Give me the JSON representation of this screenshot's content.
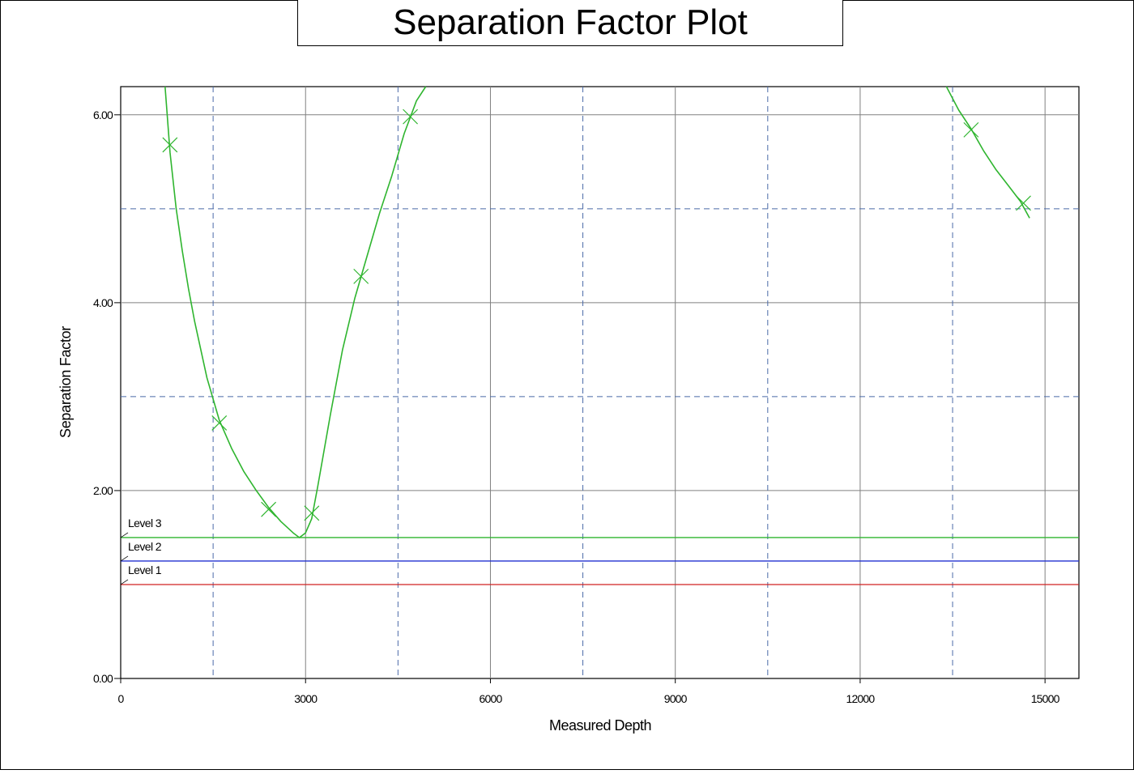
{
  "chart_data": {
    "type": "line",
    "title": "Separation Factor Plot",
    "xlabel": "Measured Depth",
    "ylabel": "Separation Factor",
    "xlim": [
      0,
      15550
    ],
    "ylim": [
      0,
      6.3
    ],
    "x_ticks": [
      0,
      3000,
      6000,
      9000,
      12000,
      15000
    ],
    "x_tick_labels": [
      "0",
      "3000",
      "6000",
      "9000",
      "12000",
      "15000"
    ],
    "y_ticks": [
      0,
      2,
      4,
      6
    ],
    "y_tick_labels": [
      "0.00",
      "2.00",
      "4.00",
      "6.00"
    ],
    "minor_x_dashed": [
      1500,
      4500,
      7500,
      10500,
      13500
    ],
    "minor_y_dashed": [
      3,
      5
    ],
    "grid": true,
    "levels": [
      {
        "name": "Level 3",
        "value": 1.5,
        "color": "#2fb52f"
      },
      {
        "name": "Level 2",
        "value": 1.25,
        "color": "#2030d0"
      },
      {
        "name": "Level 1",
        "value": 1.0,
        "color": "#d02020"
      }
    ],
    "series": [
      {
        "color": "#2fb52f",
        "segments": [
          [
            [
              720,
              6.3
            ],
            [
              800,
              5.6
            ],
            [
              900,
              5.0
            ],
            [
              1000,
              4.55
            ],
            [
              1100,
              4.15
            ],
            [
              1200,
              3.8
            ],
            [
              1400,
              3.2
            ],
            [
              1600,
              2.75
            ],
            [
              1800,
              2.45
            ],
            [
              2000,
              2.2
            ],
            [
              2200,
              2.0
            ],
            [
              2400,
              1.82
            ],
            [
              2600,
              1.67
            ],
            [
              2800,
              1.55
            ],
            [
              2900,
              1.5
            ],
            [
              3000,
              1.55
            ],
            [
              3100,
              1.7
            ],
            [
              3200,
              2.05
            ],
            [
              3400,
              2.8
            ],
            [
              3600,
              3.5
            ],
            [
              3800,
              4.05
            ],
            [
              4000,
              4.5
            ],
            [
              4200,
              4.95
            ],
            [
              4400,
              5.35
            ],
            [
              4600,
              5.8
            ],
            [
              4800,
              6.15
            ],
            [
              4950,
              6.3
            ]
          ],
          [
            [
              13400,
              6.3
            ],
            [
              13600,
              6.05
            ],
            [
              13800,
              5.85
            ],
            [
              14000,
              5.62
            ],
            [
              14200,
              5.42
            ],
            [
              14400,
              5.25
            ],
            [
              14600,
              5.08
            ],
            [
              14750,
              4.9
            ]
          ]
        ],
        "markers": [
          [
            800,
            5.68
          ],
          [
            1600,
            2.72
          ],
          [
            2400,
            1.8
          ],
          [
            3100,
            1.76
          ],
          [
            3900,
            4.28
          ],
          [
            4700,
            5.98
          ],
          [
            13800,
            5.84
          ],
          [
            14650,
            5.06
          ]
        ]
      }
    ]
  },
  "colors": {
    "grid_solid": "#808080",
    "grid_dashed": "#4a6aa8",
    "axis": "#000000",
    "series": "#2fb52f"
  }
}
